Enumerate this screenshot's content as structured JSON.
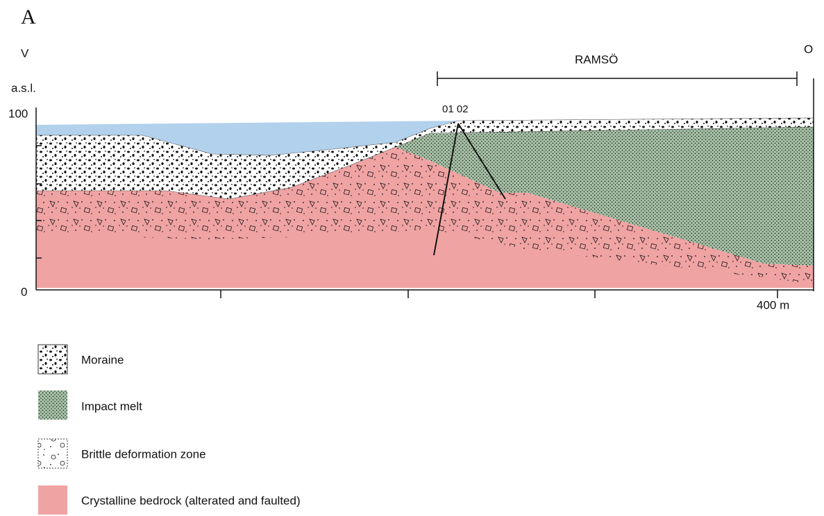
{
  "panel_label": "A",
  "axis": {
    "left_label": "V",
    "right_label": "O",
    "unit": "a.s.l.",
    "y_top": "100",
    "y_bottom": "0",
    "x_end": "400 m"
  },
  "section": {
    "label": "RAMSÖ"
  },
  "drillholes": {
    "label": "01 02"
  },
  "legend": [
    {
      "label": "Moraine"
    },
    {
      "label": "Impact melt"
    },
    {
      "label": "Brittle deformation zone"
    },
    {
      "label": "Crystalline bedrock (alterated and faulted)"
    }
  ]
}
